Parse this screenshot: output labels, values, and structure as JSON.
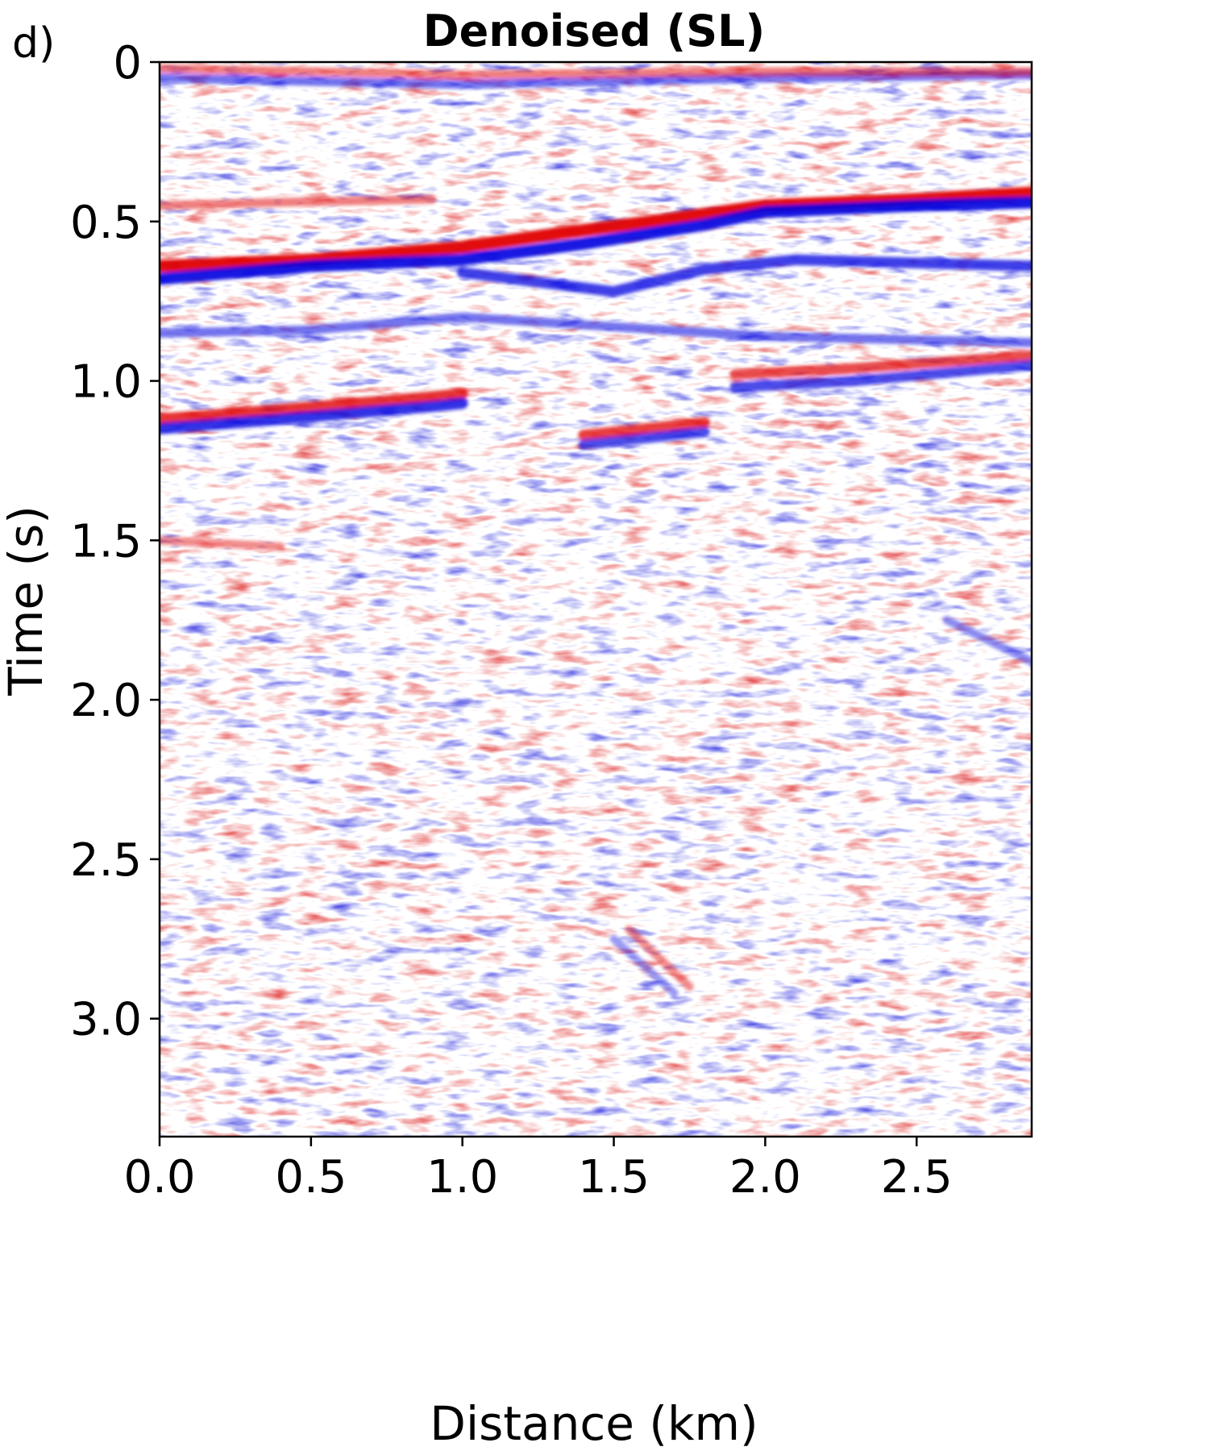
{
  "panel_label": "d)",
  "colors": {
    "positive": "#e00000",
    "negative": "#0000e0",
    "zero": "#ffffff",
    "frame": "#000000"
  },
  "chart_data": {
    "type": "heatmap",
    "title": "Denoised (SL)",
    "xlabel": "Distance (km)",
    "ylabel": "Time (s)",
    "xlim": [
      0.0,
      2.88
    ],
    "ylim": [
      3.37,
      0.0
    ],
    "y_inverted": true,
    "colormap": "seismic (blue-white-red)",
    "grid": false,
    "x_ticks": [
      0.0,
      0.5,
      1.0,
      1.5,
      2.0,
      2.5
    ],
    "x_tick_labels": [
      "0.0",
      "0.5",
      "1.0",
      "1.5",
      "2.0",
      "2.5"
    ],
    "y_ticks": [
      0,
      0.5,
      1.0,
      1.5,
      2.0,
      2.5,
      3.0
    ],
    "y_tick_labels": [
      "0",
      "0.5",
      "1.0",
      "1.5",
      "2.0",
      "2.5",
      "3.0"
    ],
    "reflectors": [
      {
        "polarity": "red",
        "amplitude": 0.95,
        "points": [
          [
            0.0,
            0.64
          ],
          [
            0.5,
            0.62
          ],
          [
            1.0,
            0.58
          ],
          [
            1.3,
            0.54
          ],
          [
            1.7,
            0.49
          ],
          [
            2.0,
            0.45
          ],
          [
            2.5,
            0.43
          ],
          [
            2.88,
            0.41
          ]
        ]
      },
      {
        "polarity": "blue",
        "amplitude": 0.9,
        "points": [
          [
            0.0,
            0.68
          ],
          [
            0.5,
            0.64
          ],
          [
            1.0,
            0.62
          ],
          [
            1.4,
            0.57
          ],
          [
            1.8,
            0.51
          ],
          [
            2.0,
            0.47
          ],
          [
            2.5,
            0.45
          ],
          [
            2.88,
            0.44
          ]
        ]
      },
      {
        "polarity": "blue",
        "amplitude": 0.75,
        "points": [
          [
            1.0,
            0.66
          ],
          [
            1.5,
            0.72
          ],
          [
            1.8,
            0.65
          ],
          [
            2.1,
            0.62
          ],
          [
            2.88,
            0.64
          ]
        ]
      },
      {
        "polarity": "red",
        "amplitude": 0.8,
        "points": [
          [
            0.0,
            1.12
          ],
          [
            0.4,
            1.09
          ],
          [
            0.9,
            1.05
          ],
          [
            1.0,
            1.04
          ]
        ]
      },
      {
        "polarity": "blue",
        "amplitude": 0.8,
        "points": [
          [
            0.0,
            1.15
          ],
          [
            0.4,
            1.12
          ],
          [
            0.9,
            1.08
          ],
          [
            1.0,
            1.07
          ]
        ]
      },
      {
        "polarity": "red",
        "amplitude": 0.75,
        "points": [
          [
            1.4,
            1.17
          ],
          [
            1.6,
            1.15
          ],
          [
            1.8,
            1.13
          ]
        ]
      },
      {
        "polarity": "blue",
        "amplitude": 0.7,
        "points": [
          [
            1.4,
            1.2
          ],
          [
            1.6,
            1.18
          ],
          [
            1.8,
            1.16
          ]
        ]
      },
      {
        "polarity": "red",
        "amplitude": 0.7,
        "points": [
          [
            1.9,
            0.98
          ],
          [
            2.3,
            0.96
          ],
          [
            2.88,
            0.92
          ]
        ]
      },
      {
        "polarity": "blue",
        "amplitude": 0.7,
        "points": [
          [
            1.9,
            1.02
          ],
          [
            2.3,
            1.0
          ],
          [
            2.88,
            0.95
          ]
        ]
      },
      {
        "polarity": "blue",
        "amplitude": 0.55,
        "points": [
          [
            0.0,
            0.05
          ],
          [
            1.0,
            0.07
          ],
          [
            2.0,
            0.05
          ],
          [
            2.88,
            0.04
          ]
        ]
      },
      {
        "polarity": "red",
        "amplitude": 0.5,
        "points": [
          [
            0.0,
            0.02
          ],
          [
            1.0,
            0.04
          ],
          [
            2.0,
            0.03
          ],
          [
            2.88,
            0.03
          ]
        ]
      },
      {
        "polarity": "red",
        "amplitude": 0.5,
        "points": [
          [
            0.0,
            0.45
          ],
          [
            0.4,
            0.44
          ],
          [
            0.9,
            0.43
          ]
        ]
      },
      {
        "polarity": "blue",
        "amplitude": 0.55,
        "points": [
          [
            0.0,
            0.85
          ],
          [
            0.5,
            0.84
          ],
          [
            1.0,
            0.8
          ],
          [
            1.5,
            0.83
          ],
          [
            2.0,
            0.86
          ],
          [
            2.88,
            0.88
          ]
        ]
      },
      {
        "polarity": "red",
        "amplitude": 0.45,
        "points": [
          [
            0.0,
            1.5
          ],
          [
            0.4,
            1.52
          ]
        ]
      },
      {
        "polarity": "blue",
        "amplitude": 0.45,
        "points": [
          [
            2.6,
            1.75
          ],
          [
            2.88,
            1.88
          ]
        ]
      },
      {
        "polarity": "red",
        "amplitude": 0.45,
        "points": [
          [
            1.55,
            2.72
          ],
          [
            1.75,
            2.9
          ]
        ]
      },
      {
        "polarity": "blue",
        "amplitude": 0.4,
        "points": [
          [
            1.5,
            2.75
          ],
          [
            1.7,
            2.92
          ]
        ]
      }
    ]
  }
}
